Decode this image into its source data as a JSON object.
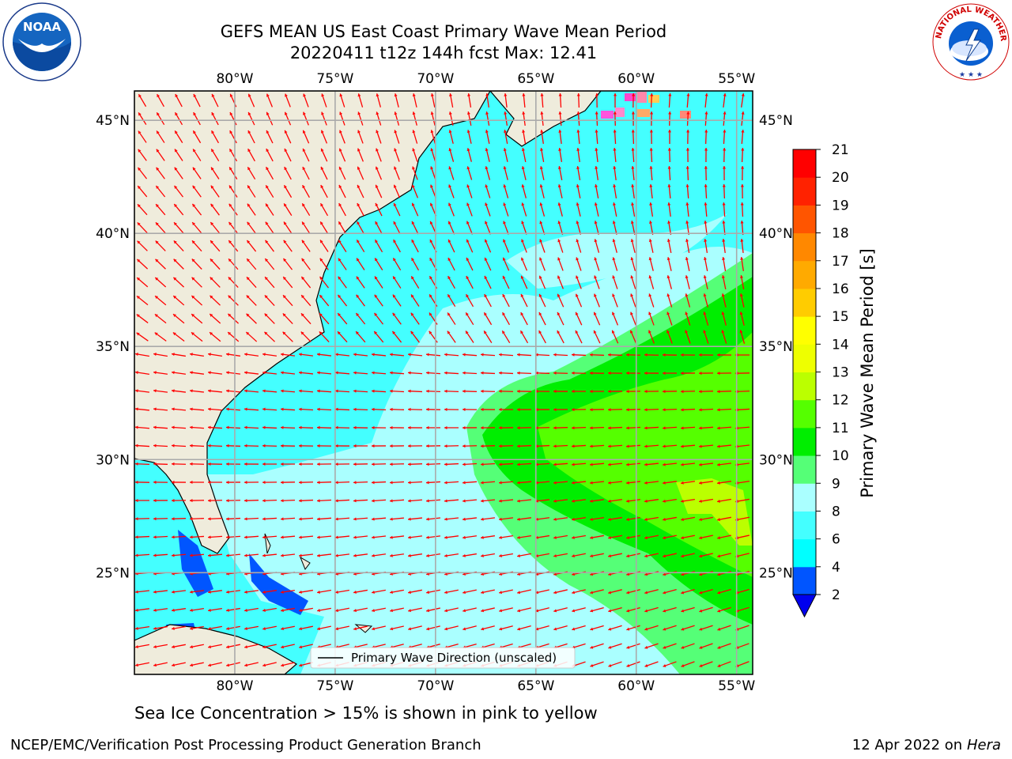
{
  "title": {
    "line1": "GEFS MEAN US East Coast Primary Wave Mean Period",
    "line2": "20220411 t12z 144h fcst   Max: 12.41"
  },
  "logos": {
    "left": "NOAA",
    "right_text": "NATIONAL WEATHER SERVICE",
    "right_symbol": "nws-lightning-cloud-icon"
  },
  "map": {
    "lon_ticks": [
      "80°W",
      "75°W",
      "70°W",
      "65°W",
      "60°W",
      "55°W"
    ],
    "lat_ticks": [
      "45°N",
      "40°N",
      "35°N",
      "30°N",
      "25°N"
    ],
    "extent": {
      "lon_min": -85,
      "lon_max": -54.2,
      "lat_min": 20.5,
      "lat_max": 46.3
    },
    "legend": "Primary Wave Direction (unscaled)",
    "land_color": "#efecdc",
    "arrow_color": "#ff0000"
  },
  "colorbar": {
    "label": "Primary Wave Mean Period [s]",
    "ticks": [
      "2",
      "4",
      "6",
      "8",
      "9",
      "10",
      "11",
      "12",
      "13",
      "14",
      "15",
      "16",
      "17",
      "18",
      "19",
      "20",
      "21"
    ],
    "colors": [
      "#0055ff",
      "#00ffff",
      "#44ffff",
      "#aaffff",
      "#55ff77",
      "#00ee00",
      "#55ff00",
      "#bbff00",
      "#eeff00",
      "#ffff00",
      "#ffcc00",
      "#ffaa00",
      "#ff8800",
      "#ff5500",
      "#ff2200",
      "#ff0000"
    ],
    "extend_color": "#0000ee"
  },
  "subcaption": "Sea Ice Concentration > 15% is shown in pink to yellow",
  "footer": {
    "left": "NCEP/EMC/Verification Post Processing Product Generation Branch",
    "right_date": "12 Apr 2022 on",
    "right_machine": "Hera"
  }
}
